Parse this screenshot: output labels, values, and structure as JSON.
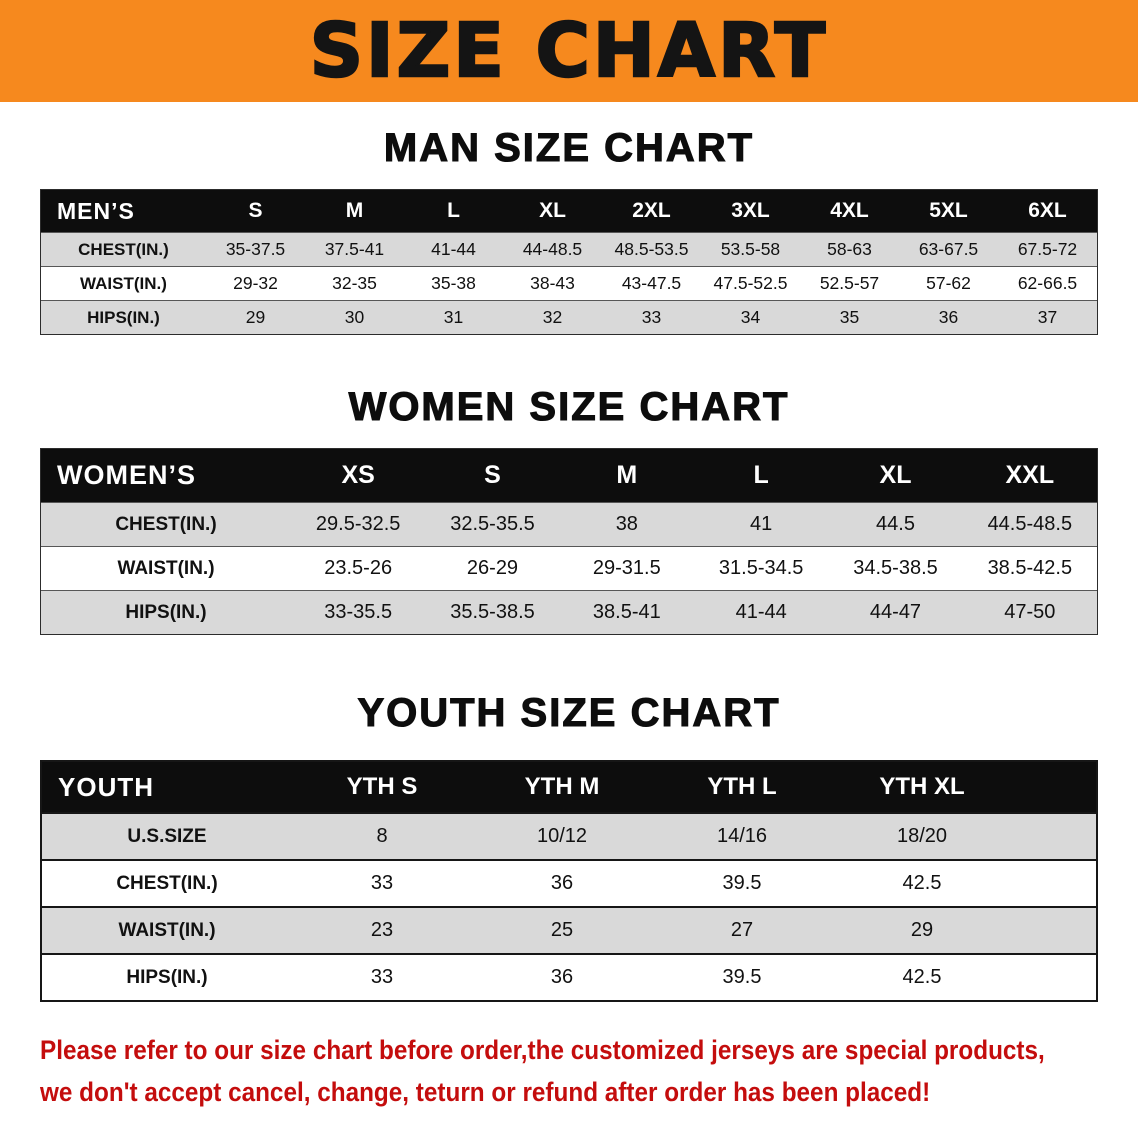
{
  "colors": {
    "banner_bg": "#f6891e",
    "table_header_bg": "#0d0d0d",
    "row_shade": "#d9d9d9",
    "note_red": "#c40d0d"
  },
  "banner": {
    "title": "SIZE CHART"
  },
  "men": {
    "heading": "MAN SIZE CHART",
    "table": {
      "header": [
        "MEN’S",
        "S",
        "M",
        "L",
        "XL",
        "2XL",
        "3XL",
        "4XL",
        "5XL",
        "6XL"
      ],
      "rows": [
        [
          "CHEST(IN.)",
          "35-37.5",
          "37.5-41",
          "41-44",
          "44-48.5",
          "48.5-53.5",
          "53.5-58",
          "58-63",
          "63-67.5",
          "67.5-72"
        ],
        [
          "WAIST(IN.)",
          "29-32",
          "32-35",
          "35-38",
          "38-43",
          "43-47.5",
          "47.5-52.5",
          "52.5-57",
          "57-62",
          "62-66.5"
        ],
        [
          "HIPS(IN.)",
          "29",
          "30",
          "31",
          "32",
          "33",
          "34",
          "35",
          "36",
          "37"
        ]
      ]
    }
  },
  "women": {
    "heading": "WOMEN SIZE CHART",
    "table": {
      "header": [
        "WOMEN’S",
        "XS",
        "S",
        "M",
        "L",
        "XL",
        "XXL"
      ],
      "rows": [
        [
          "CHEST(IN.)",
          "29.5-32.5",
          "32.5-35.5",
          "38",
          "41",
          "44.5",
          "44.5-48.5"
        ],
        [
          "WAIST(IN.)",
          "23.5-26",
          "26-29",
          "29-31.5",
          "31.5-34.5",
          "34.5-38.5",
          "38.5-42.5"
        ],
        [
          "HIPS(IN.)",
          "33-35.5",
          "35.5-38.5",
          "38.5-41",
          "41-44",
          "44-47",
          "47-50"
        ]
      ]
    }
  },
  "youth": {
    "heading": "YOUTH SIZE CHART",
    "table": {
      "header": [
        "YOUTH",
        "YTH S",
        "YTH M",
        "YTH L",
        "YTH XL"
      ],
      "rows": [
        [
          "U.S.SIZE",
          "8",
          "10/12",
          "14/16",
          "18/20"
        ],
        [
          "CHEST(IN.)",
          "33",
          "36",
          "39.5",
          "42.5"
        ],
        [
          "WAIST(IN.)",
          "23",
          "25",
          "27",
          "29"
        ],
        [
          "HIPS(IN.)",
          "33",
          "36",
          "39.5",
          "42.5"
        ]
      ]
    }
  },
  "note": {
    "line1": "Please refer to our size chart before order,the customized jerseys are special products,",
    "line2": "we don't accept cancel, change, teturn or refund after order has been placed!"
  }
}
